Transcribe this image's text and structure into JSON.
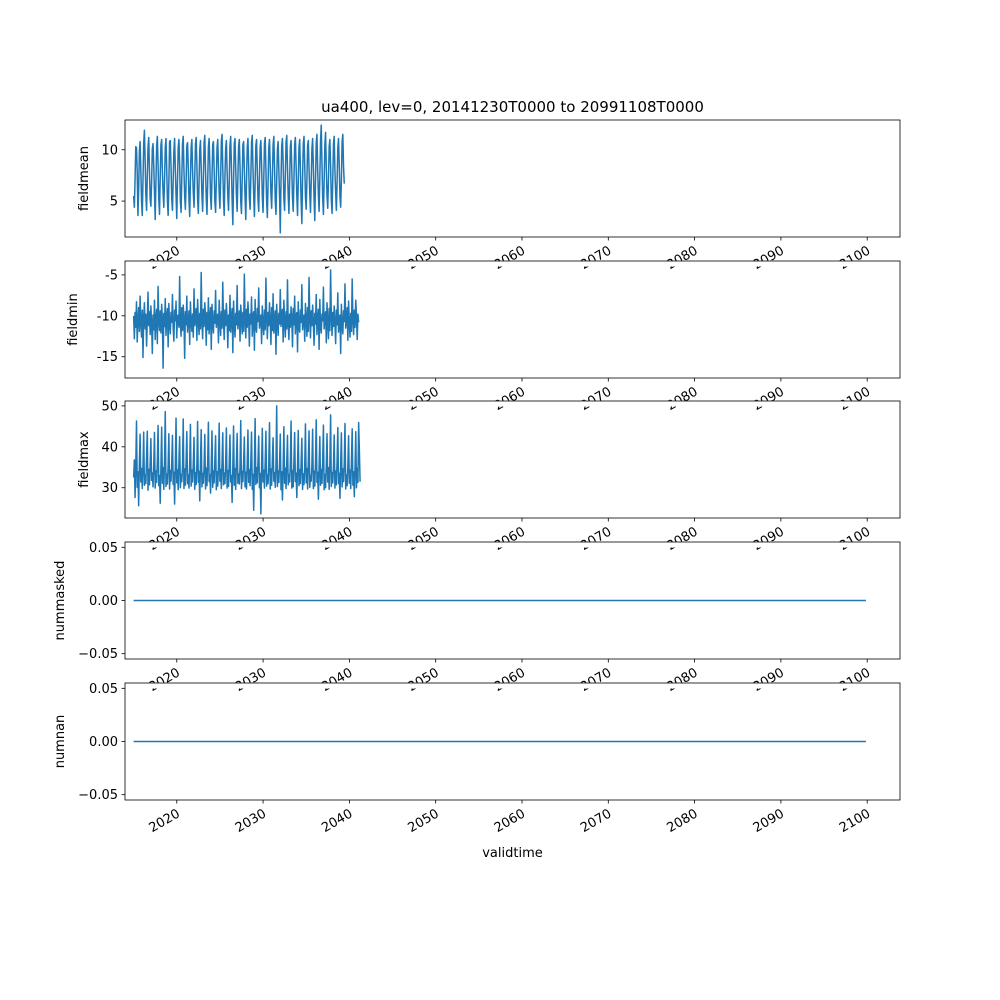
{
  "figure": {
    "title": "ua400, lev=0, 20141230T0000 to 20991108T0000",
    "xlabel": "validtime"
  },
  "chart_data": [
    {
      "type": "line",
      "title": "ua400, lev=0, 20141230T0000 to 20991108T0000",
      "ylabel": "fieldmean",
      "xlim": [
        2014.0,
        2103.8
      ],
      "ylim": [
        1.5,
        12.9
      ],
      "yticks": [
        5,
        10
      ],
      "xticks": [
        2020,
        2030,
        2040,
        2050,
        2060,
        2070,
        2080,
        2090,
        2100
      ],
      "line_color": "#1f77b4",
      "series": [
        {
          "x_start": 2015.0,
          "x_step": 0.0833,
          "values": [
            5.5,
            4.4,
            7.2,
            10.3,
            10.2,
            7.8,
            3.6,
            6.1,
            9.8,
            10.8,
            8.1,
            5.0,
            3.6,
            7.0,
            10.6,
            11.9,
            9.0,
            5.6,
            4.1,
            7.3,
            10.2,
            11.2,
            8.0,
            5.2,
            4.5,
            6.8,
            10.1,
            10.6,
            8.4,
            5.8,
            3.2,
            6.7,
            10.4,
            11.3,
            8.6,
            5.2,
            3.7,
            7.4,
            10.5,
            11.0,
            7.9,
            5.7,
            4.4,
            7.0,
            10.2,
            11.1,
            8.2,
            5.0,
            3.6,
            6.8,
            10.8,
            10.9,
            8.4,
            5.3,
            4.1,
            7.0,
            9.9,
            11.1,
            8.1,
            5.6,
            3.3,
            6.9,
            10.2,
            11.0,
            8.6,
            5.0,
            3.9,
            7.2,
            10.6,
            11.3,
            8.0,
            5.5,
            4.2,
            6.8,
            10.4,
            10.7,
            8.3,
            5.1,
            3.5,
            7.0,
            10.2,
            11.0,
            8.0,
            5.8,
            4.4,
            7.3,
            10.5,
            11.2,
            8.5,
            5.2,
            3.8,
            6.9,
            10.0,
            10.9,
            8.2,
            5.6,
            4.0,
            7.1,
            10.7,
            11.4,
            8.0,
            5.3,
            3.7,
            6.7,
            10.3,
            11.1,
            8.6,
            5.4,
            4.2,
            7.2,
            10.5,
            10.8,
            8.1,
            5.0,
            3.9,
            6.9,
            10.2,
            11.0,
            8.4,
            5.7,
            4.3,
            7.0,
            10.8,
            11.5,
            8.2,
            5.2,
            3.6,
            7.3,
            10.1,
            10.9,
            8.0,
            5.5,
            4.1,
            6.8,
            10.4,
            11.3,
            8.5,
            5.1,
            2.7,
            6.9,
            10.6,
            11.1,
            8.2,
            5.6,
            4.0,
            7.2,
            10.3,
            11.0,
            8.3,
            5.0,
            3.8,
            7.0,
            10.5,
            10.8,
            8.1,
            5.4,
            3.2,
            6.9,
            10.2,
            11.1,
            8.6,
            5.3,
            4.2,
            7.1,
            10.7,
            11.4,
            8.2,
            5.6,
            3.5,
            6.7,
            10.4,
            11.0,
            8.0,
            5.2,
            4.0,
            7.3,
            10.3,
            10.9,
            8.4,
            5.5,
            3.9,
            7.0,
            10.6,
            11.2,
            8.1,
            5.0,
            3.4,
            6.8,
            10.2,
            11.0,
            8.5,
            5.7,
            4.3,
            7.2,
            10.5,
            11.3,
            8.3,
            5.1,
            3.7,
            6.9,
            10.0,
            10.8,
            8.0,
            5.4,
            1.9,
            7.0,
            10.4,
            11.1,
            8.6,
            5.2,
            4.1,
            7.3,
            10.7,
            11.4,
            8.2,
            5.6,
            3.8,
            6.8,
            10.3,
            10.9,
            8.1,
            5.3,
            4.0,
            7.1,
            10.5,
            11.2,
            8.4,
            5.5,
            3.6,
            6.9,
            10.2,
            11.0,
            8.0,
            5.0,
            2.8,
            7.2,
            10.6,
            11.3,
            8.5,
            5.4,
            4.2,
            7.0,
            10.4,
            10.9,
            8.2,
            5.7,
            3.9,
            6.8,
            10.1,
            11.1,
            8.3,
            5.2,
            3.1,
            7.1,
            10.7,
            11.5,
            8.1,
            5.6,
            4.0,
            7.3,
            10.9,
            12.4,
            8.6,
            5.3,
            3.7,
            6.9,
            10.5,
            11.7,
            8.2,
            5.5,
            4.3,
            7.0,
            10.3,
            11.0,
            8.4,
            5.1,
            3.8,
            7.2,
            10.6,
            11.3,
            8.0,
            5.8,
            4.1,
            6.8,
            10.2,
            11.1,
            8.5,
            5.4,
            4.4,
            7.1,
            10.8,
            11.5,
            8.3,
            6.7
          ]
        }
      ]
    },
    {
      "type": "line",
      "ylabel": "fieldmin",
      "xlim": [
        2014.0,
        2103.8
      ],
      "ylim": [
        -17.6,
        -3.3
      ],
      "yticks": [
        -15,
        -10,
        -5
      ],
      "xticks": [
        2020,
        2030,
        2040,
        2050,
        2060,
        2070,
        2080,
        2090,
        2100
      ],
      "line_color": "#1f77b4",
      "series": [
        {
          "x_start": 2015.0,
          "x_step": 0.0833,
          "values": [
            -10.0,
            -12.8,
            -9.6,
            -11.4,
            -8.3,
            -13.2,
            -10.4,
            -9.0,
            -11.9,
            -7.6,
            -10.8,
            -12.6,
            -9.3,
            -15.1,
            -10.2,
            -8.4,
            -11.6,
            -9.8,
            -13.7,
            -10.6,
            -7.1,
            -11.2,
            -9.5,
            -12.3,
            -8.8,
            -10.9,
            -14.6,
            -9.9,
            -11.7,
            -8.1,
            -12.9,
            -10.3,
            -9.2,
            -13.4,
            -6.4,
            -10.7,
            -11.8,
            -9.4,
            -12.1,
            -8.6,
            -10.5,
            -16.4,
            -9.7,
            -11.3,
            -7.9,
            -12.4,
            -10.1,
            -9.1,
            -13.8,
            -8.5,
            -11.0,
            -12.2,
            -9.6,
            -10.8,
            -7.4,
            -11.5,
            -13.1,
            -9.3,
            -10.6,
            -8.2,
            -12.7,
            -10.0,
            -9.9,
            -11.4,
            -5.2,
            -10.9,
            -12.5,
            -9.0,
            -11.8,
            -8.7,
            -10.4,
            -15.2,
            -9.5,
            -11.1,
            -7.6,
            -12.0,
            -10.6,
            -9.4,
            -13.5,
            -8.3,
            -10.7,
            -11.9,
            -9.8,
            -12.6,
            -6.7,
            -11.2,
            -10.2,
            -9.1,
            -13.0,
            -8.0,
            -10.5,
            -12.3,
            -9.7,
            -11.6,
            -4.7,
            -10.8,
            -12.8,
            -9.2,
            -11.3,
            -8.4,
            -10.1,
            -13.6,
            -9.6,
            -11.7,
            -7.8,
            -12.2,
            -10.3,
            -9.0,
            -14.1,
            -8.6,
            -11.0,
            -12.1,
            -9.4,
            -10.9,
            -6.9,
            -11.4,
            -10.0,
            -9.8,
            -13.3,
            -8.1,
            -10.6,
            -12.4,
            -9.5,
            -11.5,
            -5.9,
            -10.7,
            -12.9,
            -9.3,
            -11.2,
            -8.5,
            -10.4,
            -13.9,
            -9.9,
            -11.8,
            -7.5,
            -12.0,
            -10.2,
            -9.1,
            -14.5,
            -8.2,
            -10.8,
            -12.6,
            -9.7,
            -11.1,
            -6.3,
            -11.6,
            -10.5,
            -9.4,
            -13.1,
            -8.7,
            -10.1,
            -12.2,
            -9.6,
            -11.9,
            -4.9,
            -10.6,
            -12.7,
            -9.2,
            -11.4,
            -8.3,
            -10.3,
            -13.7,
            -9.8,
            -11.0,
            -7.7,
            -12.5,
            -10.0,
            -9.5,
            -14.2,
            -8.0,
            -11.3,
            -12.0,
            -9.1,
            -10.7,
            -6.6,
            -11.5,
            -10.4,
            -9.9,
            -13.4,
            -8.8,
            -10.9,
            -12.3,
            -9.3,
            -11.7,
            -5.4,
            -10.2,
            -12.8,
            -9.6,
            -11.2,
            -8.4,
            -10.6,
            -13.5,
            -9.0,
            -11.8,
            -7.3,
            -12.1,
            -10.8,
            -9.4,
            -14.7,
            -8.6,
            -10.5,
            -12.4,
            -9.7,
            -11.0,
            -6.8,
            -11.3,
            -10.1,
            -9.2,
            -13.2,
            -8.1,
            -10.7,
            -12.6,
            -9.5,
            -11.6,
            -5.6,
            -10.9,
            -12.9,
            -9.8,
            -11.4,
            -8.9,
            -10.3,
            -13.8,
            -9.1,
            -11.1,
            -7.6,
            -12.2,
            -10.0,
            -9.6,
            -14.4,
            -8.3,
            -11.5,
            -12.0,
            -9.3,
            -10.8,
            -6.2,
            -11.7,
            -10.6,
            -9.9,
            -13.1,
            -8.5,
            -10.4,
            -12.5,
            -9.0,
            -11.9,
            -5.3,
            -10.2,
            -12.7,
            -9.4,
            -11.2,
            -8.7,
            -10.9,
            -13.6,
            -9.7,
            -11.0,
            -7.4,
            -12.3,
            -10.5,
            -9.2,
            -14.1,
            -8.0,
            -11.4,
            -12.1,
            -9.8,
            -10.6,
            -6.5,
            -11.6,
            -10.3,
            -9.5,
            -13.3,
            -8.4,
            -10.7,
            -12.8,
            -9.1,
            -11.8,
            -4.4,
            -10.1,
            -12.4,
            -9.6,
            -11.3,
            -8.8,
            -10.8,
            -13.4,
            -9.3,
            -11.1,
            -7.2,
            -12.0,
            -10.4,
            -9.9,
            -14.6,
            -8.6,
            -11.2,
            -12.2,
            -9.4,
            -10.7,
            -6.1,
            -11.5,
            -10.6,
            -9.0,
            -13.0,
            -8.2,
            -10.9,
            -12.6,
            -9.7,
            -11.9,
            -5.5,
            -10.5,
            -12.3,
            -9.3,
            -11.4,
            -8.1,
            -10.2,
            -12.9,
            -9.8,
            -10.8
          ]
        }
      ]
    },
    {
      "type": "line",
      "ylabel": "fieldmax",
      "xlim": [
        2014.0,
        2103.8
      ],
      "ylim": [
        22.6,
        51.2
      ],
      "yticks": [
        30,
        40,
        50
      ],
      "xticks": [
        2020,
        2030,
        2040,
        2050,
        2060,
        2070,
        2080,
        2090,
        2100
      ],
      "line_color": "#1f77b4",
      "series": [
        {
          "x_start": 2015.0,
          "x_step": 0.0833,
          "values": [
            32.5,
            36.8,
            27.6,
            35.4,
            46.3,
            30.1,
            33.9,
            25.6,
            36.2,
            43.1,
            31.4,
            34.7,
            29.8,
            35.1,
            43.6,
            30.6,
            33.2,
            31.0,
            37.5,
            43.8,
            29.4,
            34.5,
            30.7,
            36.0,
            42.0,
            31.8,
            33.6,
            30.2,
            35.7,
            43.5,
            29.9,
            34.1,
            31.3,
            36.4,
            45.2,
            30.5,
            33.0,
            26.2,
            35.2,
            44.8,
            31.1,
            34.9,
            29.6,
            36.6,
            48.6,
            30.3,
            33.4,
            30.9,
            35.5,
            43.2,
            29.7,
            34.2,
            31.6,
            36.1,
            42.8,
            30.8,
            33.8,
            26.0,
            35.9,
            47.0,
            31.2,
            34.4,
            29.5,
            36.3,
            42.5,
            30.0,
            33.3,
            31.5,
            35.3,
            46.8,
            29.8,
            34.6,
            30.6,
            36.7,
            43.7,
            31.0,
            33.1,
            29.9,
            35.8,
            45.5,
            30.4,
            34.3,
            31.4,
            36.0,
            42.3,
            29.6,
            33.7,
            30.8,
            35.6,
            46.2,
            31.3,
            34.0,
            26.8,
            36.5,
            44.2,
            30.2,
            33.5,
            31.1,
            35.0,
            43.0,
            29.7,
            34.8,
            30.5,
            36.2,
            46.0,
            31.5,
            33.2,
            28.7,
            35.4,
            43.9,
            30.1,
            34.1,
            31.2,
            36.8,
            42.7,
            29.5,
            33.9,
            30.4,
            35.2,
            45.8,
            31.6,
            34.5,
            29.8,
            36.4,
            43.4,
            30.7,
            33.6,
            31.0,
            35.9,
            44.6,
            29.9,
            34.2,
            30.3,
            36.1,
            42.9,
            31.4,
            33.0,
            26.4,
            35.5,
            45.1,
            30.6,
            34.7,
            29.6,
            36.6,
            43.3,
            31.1,
            33.4,
            30.9,
            35.1,
            46.4,
            29.8,
            34.0,
            31.5,
            36.3,
            42.4,
            30.2,
            33.8,
            29.7,
            35.7,
            44.1,
            31.3,
            34.4,
            30.5,
            36.0,
            43.6,
            29.6,
            33.3,
            24.5,
            35.6,
            46.9,
            30.8,
            34.9,
            31.2,
            36.5,
            42.6,
            30.0,
            33.5,
            23.6,
            35.3,
            44.5,
            31.4,
            34.3,
            29.9,
            36.2,
            43.8,
            30.4,
            33.1,
            31.0,
            35.8,
            45.9,
            29.7,
            34.6,
            30.6,
            36.9,
            42.2,
            31.6,
            33.7,
            30.1,
            35.4,
            50.0,
            30.3,
            34.1,
            31.3,
            36.1,
            43.1,
            29.5,
            33.9,
            27.0,
            35.0,
            44.9,
            31.1,
            34.8,
            29.8,
            36.4,
            42.8,
            30.7,
            33.2,
            31.4,
            35.9,
            46.3,
            29.9,
            34.2,
            30.2,
            36.7,
            43.5,
            31.5,
            33.6,
            27.6,
            35.5,
            44.0,
            30.5,
            34.4,
            31.0,
            36.0,
            42.1,
            29.6,
            33.4,
            30.8,
            35.2,
            45.6,
            31.2,
            34.7,
            29.7,
            36.6,
            43.9,
            30.1,
            33.0,
            31.6,
            35.7,
            44.3,
            29.8,
            34.0,
            30.4,
            36.3,
            46.6,
            31.3,
            33.8,
            27.2,
            35.1,
            42.5,
            30.6,
            34.5,
            31.1,
            36.8,
            45.3,
            29.5,
            33.3,
            30.0,
            35.6,
            43.2,
            31.4,
            34.9,
            29.6,
            36.2,
            47.8,
            30.3,
            33.7,
            31.2,
            35.3,
            42.9,
            29.9,
            34.1,
            30.7,
            36.5,
            44.7,
            31.0,
            33.5,
            27.4,
            35.8,
            43.4,
            30.2,
            34.6,
            31.5,
            36.1,
            45.7,
            29.7,
            33.1,
            30.5,
            35.4,
            42.7,
            31.1,
            34.3,
            29.8,
            36.7,
            44.4,
            30.6,
            33.9,
            27.8,
            35.2,
            43.7,
            30.0,
            34.8,
            31.3,
            45.9,
            39.1,
            31.5
          ]
        }
      ]
    },
    {
      "type": "line",
      "ylabel": "nummasked",
      "xlim": [
        2014.0,
        2103.8
      ],
      "ylim": [
        -0.055,
        0.055
      ],
      "yticks": [
        -0.05,
        0.0,
        0.05
      ],
      "ytick_labels": [
        "−0.05",
        "0.00",
        "0.05"
      ],
      "xticks": [
        2020,
        2030,
        2040,
        2050,
        2060,
        2070,
        2080,
        2090,
        2100
      ],
      "line_color": "#1f77b4",
      "series": [
        {
          "x_start": 2015.0,
          "x_end": 2099.85,
          "constant": 0.0
        }
      ]
    },
    {
      "type": "line",
      "ylabel": "numnan",
      "xlabel": "validtime",
      "xlim": [
        2014.0,
        2103.8
      ],
      "ylim": [
        -0.055,
        0.055
      ],
      "yticks": [
        -0.05,
        0.0,
        0.05
      ],
      "ytick_labels": [
        "−0.05",
        "0.00",
        "0.05"
      ],
      "xticks": [
        2020,
        2030,
        2040,
        2050,
        2060,
        2070,
        2080,
        2090,
        2100
      ],
      "xtick_labels": [
        "2020",
        "2030",
        "2040",
        "2050",
        "2060",
        "2070",
        "2080",
        "2090",
        "2100"
      ],
      "line_color": "#1f77b4",
      "series": [
        {
          "x_start": 2015.0,
          "x_end": 2099.85,
          "constant": 0.0
        }
      ]
    }
  ]
}
